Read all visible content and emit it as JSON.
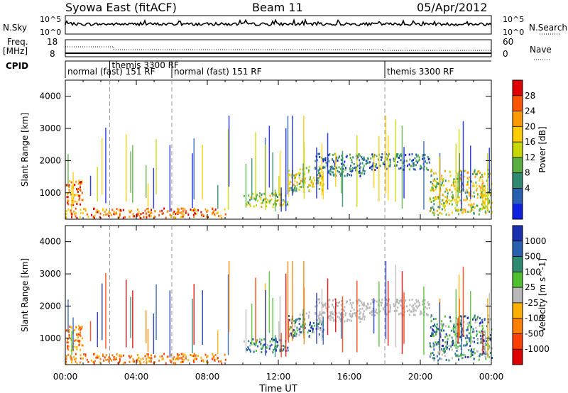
{
  "header": {
    "title": "Syowa East (fitACF)",
    "beam": "Beam 11",
    "date": "05/Apr/2012"
  },
  "panels": {
    "nsky_label": "N.Sky",
    "nsky_ticks": [
      "10^5",
      "10^0"
    ],
    "nsearch_label": "N.Search",
    "nsearch_ticks": [
      "10^5",
      "10^0"
    ],
    "freq_label": "Freq.",
    "freq_unit": "[MHz]",
    "freq_ticks": [
      "18",
      "8"
    ],
    "nave_label": "Nave",
    "nave_ticks": [
      "60",
      "0"
    ],
    "cpid_label": "CPID"
  },
  "modes": [
    {
      "label": "normal (fast) 151 RF",
      "start": 0.0
    },
    {
      "label": "themis 3300 RF",
      "start": 2.5
    },
    {
      "label": "normal (fast) 151 RF",
      "start": 6.0
    },
    {
      "label": "themis 3300 RF",
      "start": 18.0
    }
  ],
  "chart_data": [
    {
      "type": "heatmap",
      "name": "power",
      "ylabel": "Slant Range [km]",
      "ylim": [
        180,
        4500
      ],
      "yticks": [
        1000,
        2000,
        3000,
        4000
      ],
      "xlim": [
        0,
        24
      ],
      "xticks": [
        "00:00",
        "04:00",
        "08:00",
        "12:00",
        "16:00",
        "20:00",
        "00:00"
      ],
      "colorbar": {
        "label": "Power [dB]",
        "ticks": [
          "28",
          "24",
          "20",
          "16",
          "12",
          "8",
          "4"
        ],
        "colors": [
          "#e00000",
          "#ff5500",
          "#ff9900",
          "#ffcc00",
          "#c8d800",
          "#58b040",
          "#2e8a70",
          "#2a60b0",
          "#1020e0"
        ]
      },
      "echo_regions": [
        {
          "t": [
            0.0,
            1.0
          ],
          "r": [
            600,
            1400
          ],
          "level": "high"
        },
        {
          "t": [
            0.0,
            9.0
          ],
          "r": [
            200,
            500
          ],
          "level": "high"
        },
        {
          "t": [
            10.0,
            12.5
          ],
          "r": [
            550,
            1000
          ],
          "level": "mid"
        },
        {
          "t": [
            12.5,
            14.5
          ],
          "r": [
            1000,
            1800
          ],
          "level": "mid"
        },
        {
          "t": [
            14.0,
            17.0
          ],
          "r": [
            1500,
            2200
          ],
          "level": "low"
        },
        {
          "t": [
            17.0,
            20.5
          ],
          "r": [
            1700,
            2200
          ],
          "level": "low"
        },
        {
          "t": [
            20.5,
            24.0
          ],
          "r": [
            300,
            1700
          ],
          "level": "mid"
        }
      ]
    },
    {
      "type": "heatmap",
      "name": "velocity",
      "ylabel": "Slant Range [km]",
      "ylim": [
        180,
        4500
      ],
      "yticks": [
        1000,
        2000,
        3000,
        4000
      ],
      "xlim": [
        0,
        24
      ],
      "xticks": [
        "00:00",
        "04:00",
        "08:00",
        "12:00",
        "16:00",
        "20:00",
        "00:00"
      ],
      "xlabel": "Time UT",
      "colorbar": {
        "label": "Velocity [m s^-1]",
        "ticks": [
          "1000",
          "500",
          "100",
          "25",
          "-25",
          "-100",
          "-500",
          "-1000"
        ],
        "colors": [
          "#1a30b0",
          "#2a60b0",
          "#2e8a70",
          "#50c030",
          "#b8b8b8",
          "#ffb000",
          "#ff8000",
          "#ff4000",
          "#e00000"
        ]
      }
    }
  ]
}
